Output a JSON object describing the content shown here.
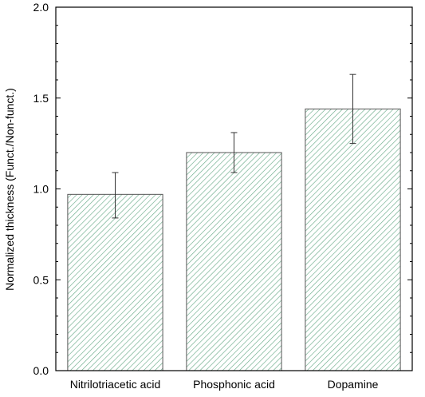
{
  "chart_data": {
    "type": "bar",
    "categories": [
      "Nitrilotriacetic acid",
      "Phosphonic acid",
      "Dopamine"
    ],
    "values": [
      0.97,
      1.2,
      1.44
    ],
    "error_low": [
      0.84,
      1.09,
      1.25
    ],
    "error_high": [
      1.09,
      1.31,
      1.63
    ],
    "title": "",
    "xlabel": "",
    "ylabel": "Normalized thickness (Funct./Non-funct.)",
    "ylim": [
      0,
      2.0
    ],
    "yticks": [
      0.0,
      0.5,
      1.0,
      1.5,
      2.0
    ],
    "ytick_labels": [
      "0.0",
      "0.5",
      "1.0",
      "1.5",
      "2.0"
    ],
    "grid": false,
    "bar_fill": "hatched",
    "colors": {
      "hatch": "#6aab8a",
      "bar_edge": "#555555",
      "error_bar": "#333333",
      "axis": "#000000"
    }
  }
}
